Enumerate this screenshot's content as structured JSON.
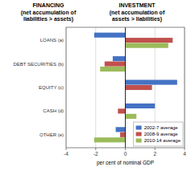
{
  "chart_data": {
    "type": "bar",
    "orientation": "horizontal",
    "title": "FINANCING\n(net accumulation of\nliabilities > assets)",
    "annotations": [
      "INVESTMENT\n(net accumulation of\nassets > liabilities)"
    ],
    "categories": [
      "LOANS (a)",
      "DEBT SECURITIES (b)",
      "EQUITY (c)",
      "CASH (d)",
      "OTHER (e)"
    ],
    "series": [
      {
        "name": "2002-7 average",
        "color": "#4472C4",
        "values": [
          -2.1,
          -0.85,
          3.5,
          2.0,
          -0.65
        ]
      },
      {
        "name": "2008-9 average",
        "color": "#C0504D",
        "values": [
          3.2,
          -1.4,
          1.8,
          -0.5,
          -0.35
        ]
      },
      {
        "name": "2010-14 average",
        "color": "#9BBB59",
        "values": [
          2.9,
          -1.7,
          0.0,
          0.75,
          -2.1
        ]
      }
    ],
    "xlim": [
      -4,
      4
    ],
    "xticks": [
      -4,
      -2,
      0,
      2,
      4
    ],
    "xlabel": "per cent of nominal GDP",
    "grid": true,
    "legend": "lower right"
  }
}
